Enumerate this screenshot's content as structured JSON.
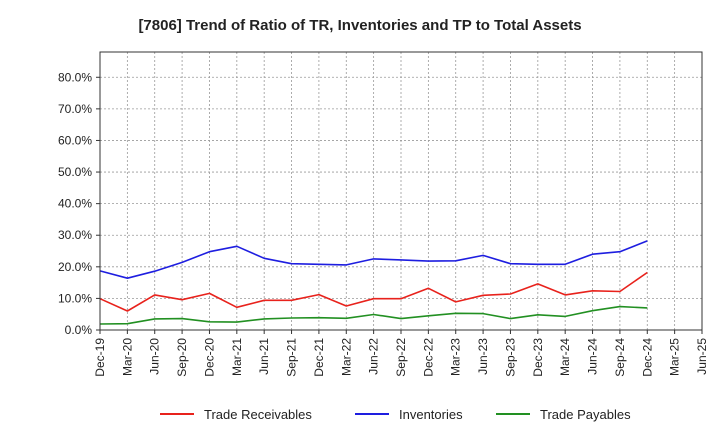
{
  "chart_data": {
    "type": "line",
    "title": "[7806]  Trend of Ratio of TR, Inventories and TP to Total Assets",
    "xlabel": "",
    "ylabel": "",
    "ylim": [
      0,
      88
    ],
    "y_ticks": [
      0,
      10,
      20,
      30,
      40,
      50,
      60,
      70,
      80
    ],
    "y_tick_labels": [
      "0.0%",
      "10.0%",
      "20.0%",
      "30.0%",
      "40.0%",
      "50.0%",
      "60.0%",
      "70.0%",
      "80.0%"
    ],
    "x_tick_labels": [
      "Dec-19",
      "Mar-20",
      "Jun-20",
      "Sep-20",
      "Dec-20",
      "Mar-21",
      "Jun-21",
      "Sep-21",
      "Dec-21",
      "Mar-22",
      "Jun-22",
      "Sep-22",
      "Dec-22",
      "Mar-23",
      "Jun-23",
      "Sep-23",
      "Dec-23",
      "Mar-24",
      "Jun-24",
      "Sep-24",
      "Dec-24",
      "Mar-25",
      "Jun-25"
    ],
    "grid": true,
    "legend_position": "bottom",
    "series": [
      {
        "name": "Trade Receivables",
        "color": "#e8221c",
        "values": [
          9.9,
          6.0,
          11.1,
          9.6,
          11.6,
          7.2,
          9.4,
          9.4,
          11.2,
          7.6,
          9.9,
          9.9,
          13.2,
          8.9,
          11.0,
          11.4,
          14.6,
          11.1,
          12.4,
          12.2,
          18.2
        ]
      },
      {
        "name": "Inventories",
        "color": "#1e1ee0",
        "values": [
          18.7,
          16.4,
          18.6,
          21.4,
          24.8,
          26.5,
          22.7,
          21.0,
          20.8,
          20.6,
          22.5,
          22.2,
          21.8,
          21.9,
          23.6,
          21.0,
          20.8,
          20.8,
          24.0,
          24.8,
          28.2
        ]
      },
      {
        "name": "Trade Payables",
        "color": "#229022",
        "values": [
          1.9,
          2.0,
          3.5,
          3.6,
          2.6,
          2.5,
          3.5,
          3.8,
          3.9,
          3.7,
          4.9,
          3.6,
          4.5,
          5.3,
          5.2,
          3.6,
          4.8,
          4.3,
          6.1,
          7.4,
          7.0
        ]
      }
    ]
  }
}
